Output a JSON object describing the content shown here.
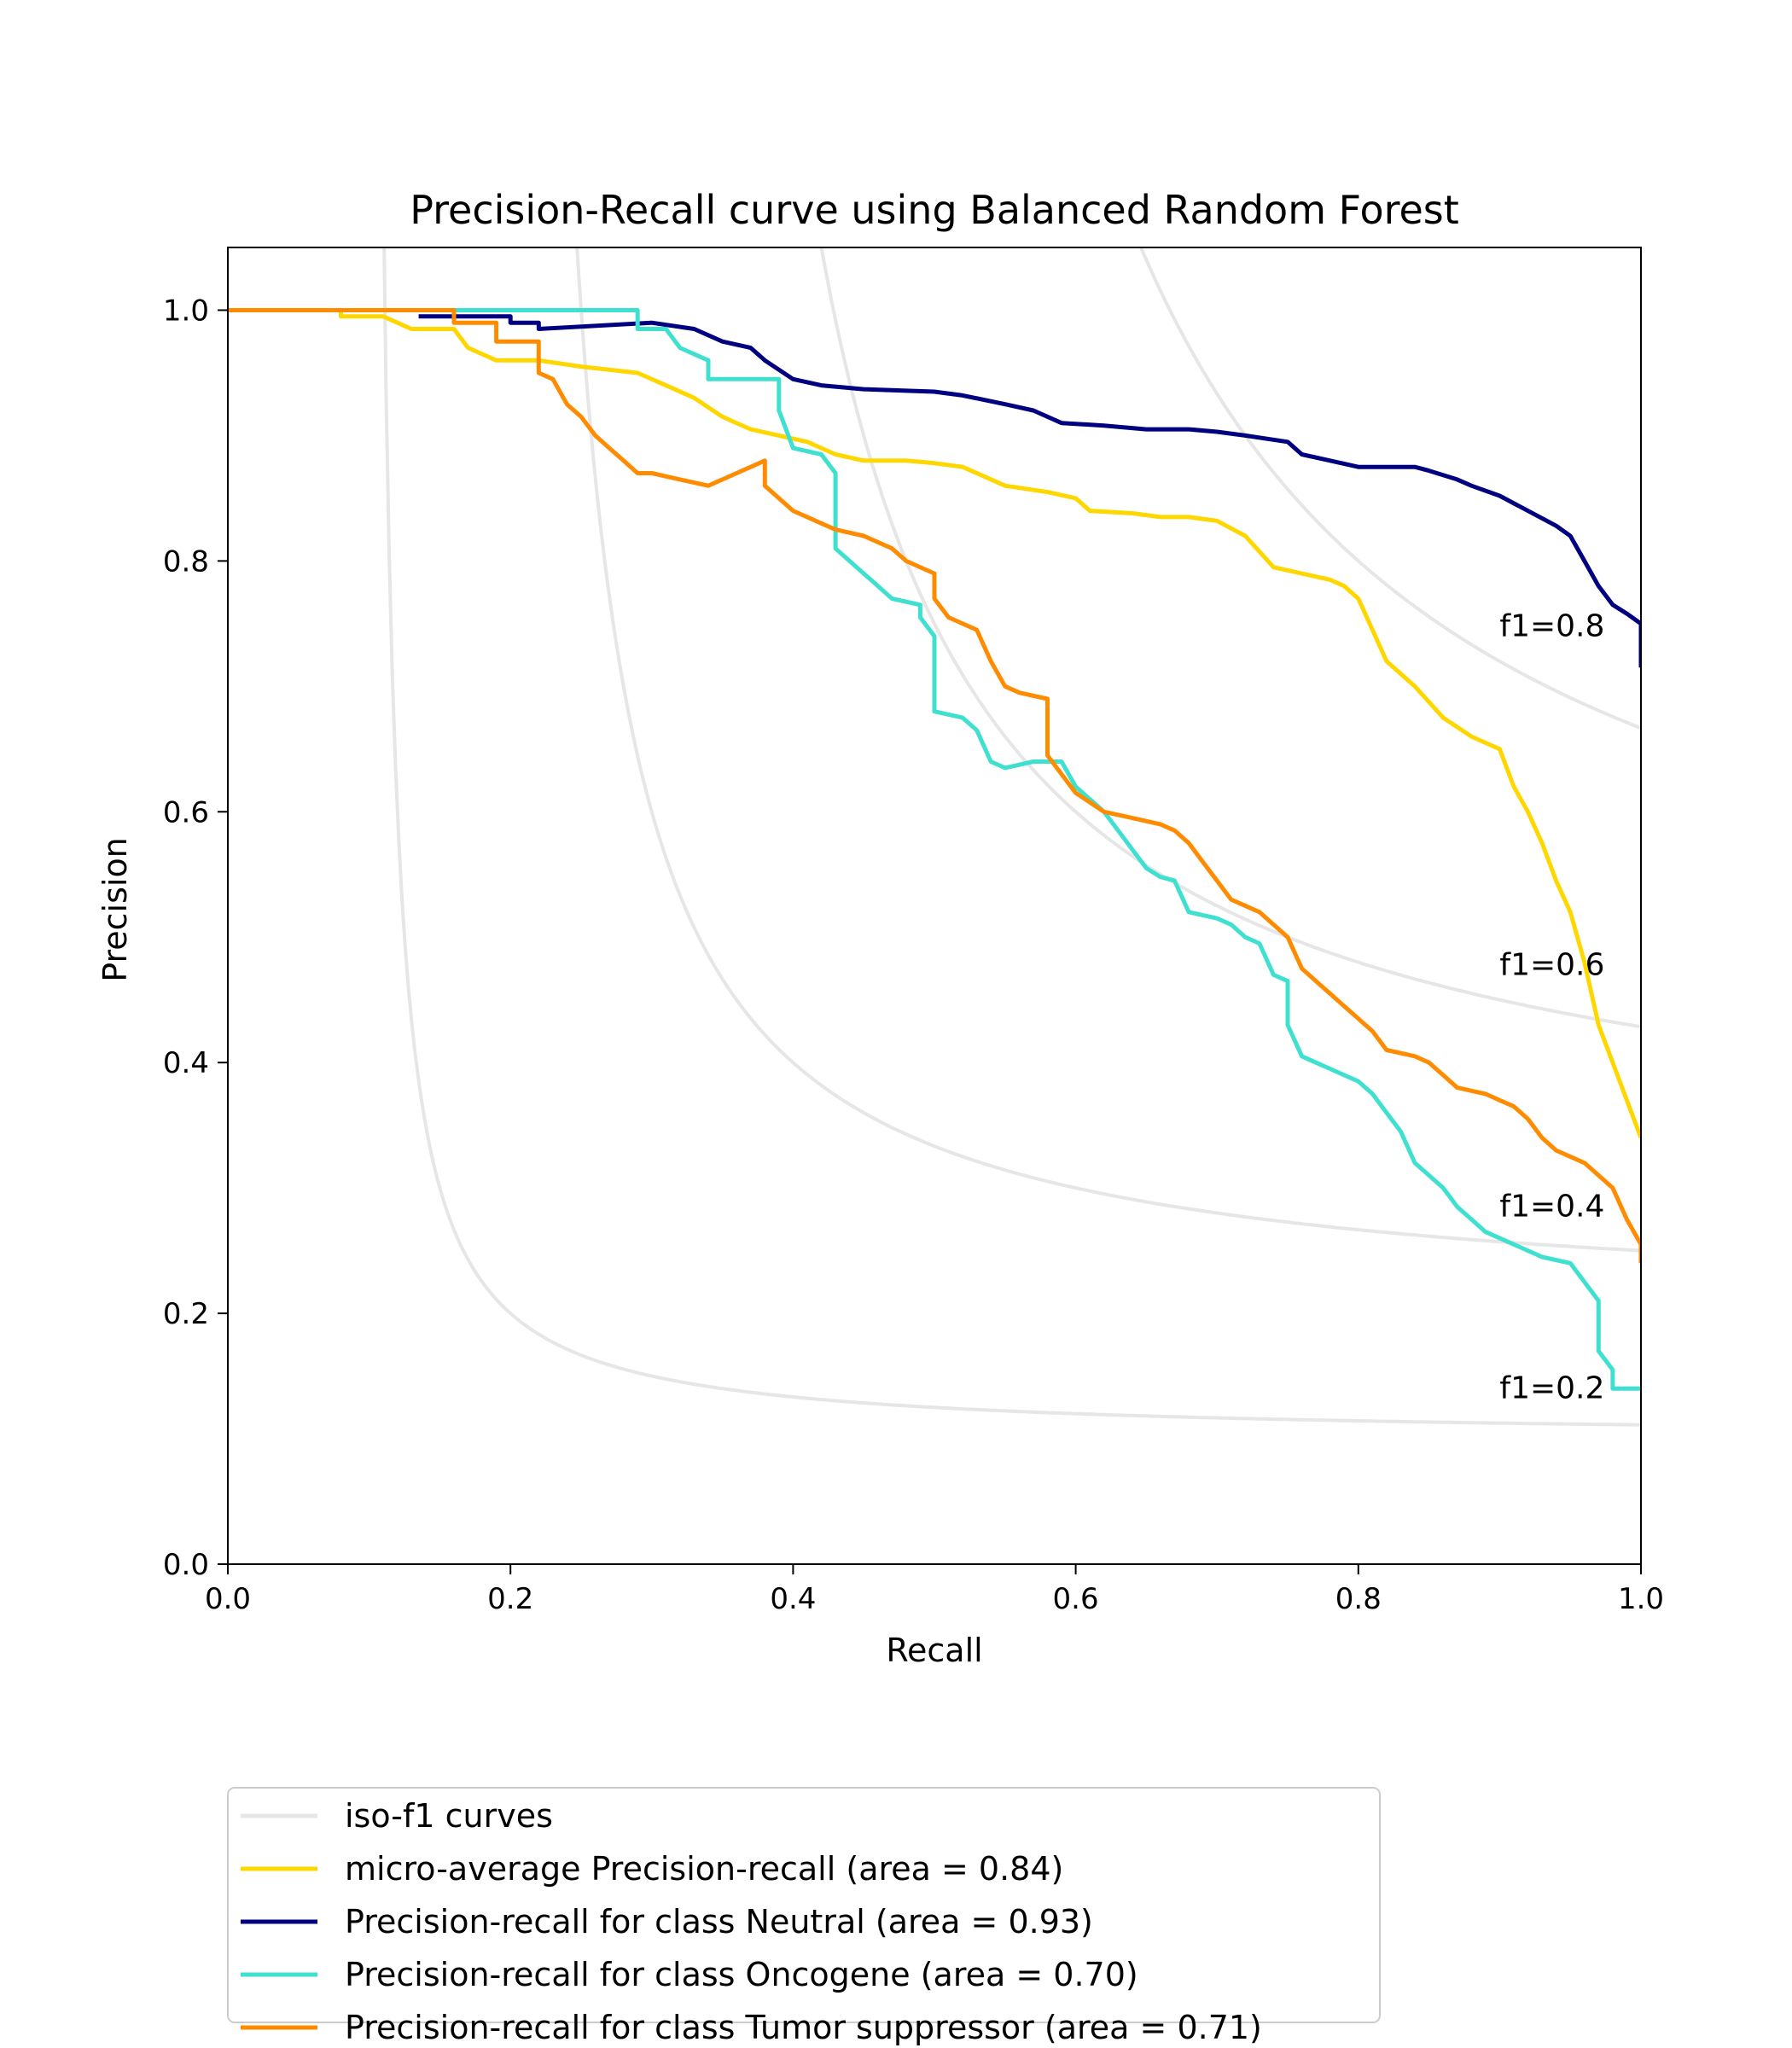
{
  "chart_data": {
    "type": "line",
    "title": "Precision-Recall curve using Balanced Random Forest",
    "xlabel": "Recall",
    "ylabel": "Precision",
    "xlim": [
      0.0,
      1.0
    ],
    "ylim": [
      0.0,
      1.05
    ],
    "xticks": [
      "0.0",
      "0.2",
      "0.4",
      "0.6",
      "0.8",
      "1.0"
    ],
    "yticks": [
      "0.0",
      "0.2",
      "0.4",
      "0.6",
      "0.8",
      "1.0"
    ],
    "grid": false,
    "legend_position": "below-chart",
    "iso_f1": {
      "legend_label": "iso-f1 curves",
      "color": "#e6e6e6",
      "values": [
        0.2,
        0.4,
        0.6,
        0.8
      ],
      "labels": [
        "f1=0.2",
        "f1=0.4",
        "f1=0.6",
        "f1=0.8"
      ]
    },
    "series": [
      {
        "name": "micro-average Precision-recall (area = 0.84)",
        "color": "#ffd700",
        "points": [
          [
            0,
            1.0
          ],
          [
            0.08,
            1.0
          ],
          [
            0.08,
            0.995
          ],
          [
            0.11,
            0.995
          ],
          [
            0.12,
            0.99
          ],
          [
            0.13,
            0.985
          ],
          [
            0.16,
            0.985
          ],
          [
            0.17,
            0.97
          ],
          [
            0.19,
            0.96
          ],
          [
            0.22,
            0.96
          ],
          [
            0.25,
            0.955
          ],
          [
            0.29,
            0.95
          ],
          [
            0.31,
            0.94
          ],
          [
            0.33,
            0.93
          ],
          [
            0.35,
            0.915
          ],
          [
            0.37,
            0.905
          ],
          [
            0.39,
            0.9
          ],
          [
            0.41,
            0.895
          ],
          [
            0.43,
            0.885
          ],
          [
            0.45,
            0.88
          ],
          [
            0.48,
            0.88
          ],
          [
            0.5,
            0.878
          ],
          [
            0.52,
            0.875
          ],
          [
            0.55,
            0.86
          ],
          [
            0.58,
            0.855
          ],
          [
            0.6,
            0.85
          ],
          [
            0.61,
            0.84
          ],
          [
            0.64,
            0.838
          ],
          [
            0.66,
            0.835
          ],
          [
            0.68,
            0.835
          ],
          [
            0.7,
            0.832
          ],
          [
            0.72,
            0.82
          ],
          [
            0.74,
            0.795
          ],
          [
            0.76,
            0.79
          ],
          [
            0.78,
            0.785
          ],
          [
            0.79,
            0.78
          ],
          [
            0.8,
            0.77
          ],
          [
            0.81,
            0.745
          ],
          [
            0.82,
            0.72
          ],
          [
            0.84,
            0.7
          ],
          [
            0.86,
            0.675
          ],
          [
            0.88,
            0.66
          ],
          [
            0.9,
            0.65
          ],
          [
            0.91,
            0.62
          ],
          [
            0.92,
            0.6
          ],
          [
            0.93,
            0.575
          ],
          [
            0.94,
            0.545
          ],
          [
            0.95,
            0.52
          ],
          [
            0.96,
            0.48
          ],
          [
            0.97,
            0.43
          ],
          [
            0.98,
            0.4
          ],
          [
            0.99,
            0.37
          ],
          [
            1.0,
            0.34
          ]
        ]
      },
      {
        "name": "Precision-recall for class Neutral (area = 0.93)",
        "color": "#000080",
        "points": [
          [
            0.135,
            0.995
          ],
          [
            0.2,
            0.995
          ],
          [
            0.2,
            0.99
          ],
          [
            0.22,
            0.99
          ],
          [
            0.22,
            0.985
          ],
          [
            0.3,
            0.99
          ],
          [
            0.33,
            0.985
          ],
          [
            0.35,
            0.975
          ],
          [
            0.37,
            0.97
          ],
          [
            0.38,
            0.96
          ],
          [
            0.4,
            0.945
          ],
          [
            0.42,
            0.94
          ],
          [
            0.45,
            0.937
          ],
          [
            0.5,
            0.935
          ],
          [
            0.52,
            0.932
          ],
          [
            0.55,
            0.925
          ],
          [
            0.57,
            0.92
          ],
          [
            0.59,
            0.91
          ],
          [
            0.62,
            0.908
          ],
          [
            0.65,
            0.905
          ],
          [
            0.68,
            0.905
          ],
          [
            0.7,
            0.903
          ],
          [
            0.72,
            0.9
          ],
          [
            0.75,
            0.895
          ],
          [
            0.76,
            0.885
          ],
          [
            0.78,
            0.88
          ],
          [
            0.8,
            0.875
          ],
          [
            0.82,
            0.875
          ],
          [
            0.84,
            0.875
          ],
          [
            0.85,
            0.872
          ],
          [
            0.87,
            0.865
          ],
          [
            0.88,
            0.86
          ],
          [
            0.9,
            0.852
          ],
          [
            0.92,
            0.84
          ],
          [
            0.94,
            0.828
          ],
          [
            0.95,
            0.82
          ],
          [
            0.96,
            0.8
          ],
          [
            0.97,
            0.78
          ],
          [
            0.98,
            0.765
          ],
          [
            0.99,
            0.758
          ],
          [
            1.0,
            0.75
          ],
          [
            1.0,
            0.715
          ]
        ]
      },
      {
        "name": "Precision-recall for class Oncogene (area = 0.70)",
        "color": "#40e0d0",
        "points": [
          [
            0,
            1.0
          ],
          [
            0.29,
            1.0
          ],
          [
            0.29,
            0.985
          ],
          [
            0.31,
            0.985
          ],
          [
            0.32,
            0.97
          ],
          [
            0.34,
            0.96
          ],
          [
            0.34,
            0.945
          ],
          [
            0.36,
            0.945
          ],
          [
            0.39,
            0.945
          ],
          [
            0.39,
            0.92
          ],
          [
            0.4,
            0.89
          ],
          [
            0.42,
            0.885
          ],
          [
            0.43,
            0.87
          ],
          [
            0.43,
            0.81
          ],
          [
            0.44,
            0.8
          ],
          [
            0.45,
            0.79
          ],
          [
            0.46,
            0.78
          ],
          [
            0.47,
            0.77
          ],
          [
            0.49,
            0.765
          ],
          [
            0.49,
            0.755
          ],
          [
            0.5,
            0.74
          ],
          [
            0.5,
            0.68
          ],
          [
            0.52,
            0.675
          ],
          [
            0.53,
            0.665
          ],
          [
            0.54,
            0.64
          ],
          [
            0.55,
            0.635
          ],
          [
            0.57,
            0.64
          ],
          [
            0.59,
            0.64
          ],
          [
            0.6,
            0.62
          ],
          [
            0.61,
            0.61
          ],
          [
            0.62,
            0.6
          ],
          [
            0.63,
            0.585
          ],
          [
            0.64,
            0.57
          ],
          [
            0.65,
            0.555
          ],
          [
            0.66,
            0.548
          ],
          [
            0.67,
            0.545
          ],
          [
            0.68,
            0.52
          ],
          [
            0.7,
            0.515
          ],
          [
            0.71,
            0.51
          ],
          [
            0.72,
            0.5
          ],
          [
            0.73,
            0.495
          ],
          [
            0.74,
            0.47
          ],
          [
            0.75,
            0.465
          ],
          [
            0.75,
            0.43
          ],
          [
            0.76,
            0.405
          ],
          [
            0.77,
            0.4
          ],
          [
            0.78,
            0.395
          ],
          [
            0.79,
            0.39
          ],
          [
            0.8,
            0.385
          ],
          [
            0.81,
            0.375
          ],
          [
            0.82,
            0.36
          ],
          [
            0.83,
            0.345
          ],
          [
            0.84,
            0.32
          ],
          [
            0.85,
            0.31
          ],
          [
            0.86,
            0.3
          ],
          [
            0.87,
            0.285
          ],
          [
            0.88,
            0.275
          ],
          [
            0.89,
            0.265
          ],
          [
            0.9,
            0.26
          ],
          [
            0.92,
            0.25
          ],
          [
            0.93,
            0.245
          ],
          [
            0.95,
            0.24
          ],
          [
            0.96,
            0.225
          ],
          [
            0.97,
            0.21
          ],
          [
            0.97,
            0.17
          ],
          [
            0.98,
            0.155
          ],
          [
            0.98,
            0.14
          ],
          [
            1.0,
            0.14
          ]
        ]
      },
      {
        "name": "Precision-recall for class Tumor suppressor (area = 0.71)",
        "color": "#ff8c00",
        "points": [
          [
            0,
            1.0
          ],
          [
            0.16,
            1.0
          ],
          [
            0.16,
            0.99
          ],
          [
            0.19,
            0.99
          ],
          [
            0.19,
            0.975
          ],
          [
            0.22,
            0.975
          ],
          [
            0.22,
            0.95
          ],
          [
            0.23,
            0.945
          ],
          [
            0.24,
            0.925
          ],
          [
            0.25,
            0.915
          ],
          [
            0.26,
            0.9
          ],
          [
            0.27,
            0.89
          ],
          [
            0.28,
            0.88
          ],
          [
            0.29,
            0.87
          ],
          [
            0.3,
            0.87
          ],
          [
            0.32,
            0.865
          ],
          [
            0.34,
            0.86
          ],
          [
            0.36,
            0.87
          ],
          [
            0.38,
            0.88
          ],
          [
            0.38,
            0.86
          ],
          [
            0.39,
            0.85
          ],
          [
            0.4,
            0.84
          ],
          [
            0.42,
            0.83
          ],
          [
            0.43,
            0.825
          ],
          [
            0.45,
            0.82
          ],
          [
            0.47,
            0.81
          ],
          [
            0.48,
            0.8
          ],
          [
            0.5,
            0.79
          ],
          [
            0.5,
            0.77
          ],
          [
            0.51,
            0.755
          ],
          [
            0.53,
            0.745
          ],
          [
            0.54,
            0.72
          ],
          [
            0.55,
            0.7
          ],
          [
            0.56,
            0.695
          ],
          [
            0.58,
            0.69
          ],
          [
            0.58,
            0.645
          ],
          [
            0.59,
            0.63
          ],
          [
            0.6,
            0.615
          ],
          [
            0.62,
            0.6
          ],
          [
            0.64,
            0.595
          ],
          [
            0.66,
            0.59
          ],
          [
            0.67,
            0.585
          ],
          [
            0.68,
            0.575
          ],
          [
            0.69,
            0.56
          ],
          [
            0.7,
            0.545
          ],
          [
            0.71,
            0.53
          ],
          [
            0.73,
            0.52
          ],
          [
            0.74,
            0.51
          ],
          [
            0.75,
            0.5
          ],
          [
            0.76,
            0.475
          ],
          [
            0.77,
            0.465
          ],
          [
            0.78,
            0.455
          ],
          [
            0.79,
            0.445
          ],
          [
            0.8,
            0.435
          ],
          [
            0.81,
            0.425
          ],
          [
            0.82,
            0.41
          ],
          [
            0.84,
            0.405
          ],
          [
            0.85,
            0.4
          ],
          [
            0.86,
            0.39
          ],
          [
            0.87,
            0.38
          ],
          [
            0.89,
            0.375
          ],
          [
            0.9,
            0.37
          ],
          [
            0.91,
            0.365
          ],
          [
            0.92,
            0.355
          ],
          [
            0.93,
            0.34
          ],
          [
            0.94,
            0.33
          ],
          [
            0.96,
            0.32
          ],
          [
            0.97,
            0.31
          ],
          [
            0.98,
            0.3
          ],
          [
            0.99,
            0.275
          ],
          [
            1.0,
            0.255
          ],
          [
            1.0,
            0.24
          ]
        ]
      }
    ]
  }
}
